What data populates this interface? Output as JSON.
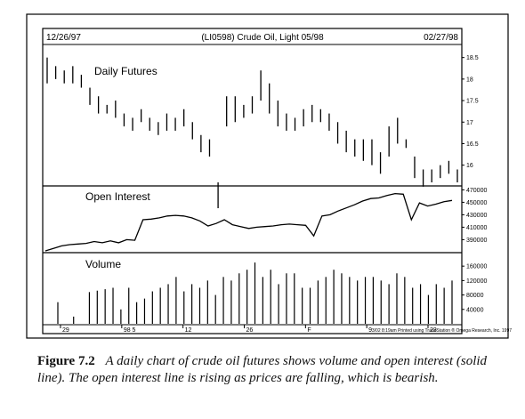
{
  "header": {
    "start_date": "12/26/97",
    "title": "(LI0598) Crude Oil, Light 05/98",
    "end_date": "02/27/98"
  },
  "panels": {
    "price_label": "Daily Futures",
    "oi_label": "Open Interest",
    "volume_label": "Volume"
  },
  "footer_credit": "3/02 8:19am Printed using TradeStation ® Omega Research, Inc. 1997",
  "caption": {
    "label": "Figure 7.2",
    "text": "A daily chart of crude oil futures shows volume and open interest (solid line). The open interest line is rising as prices are falling, which is bearish."
  },
  "chart_data": {
    "type": "bar",
    "x_tick_labels": [
      "29",
      "98 5",
      "12",
      "26",
      "F",
      "9",
      "23"
    ],
    "price": {
      "ylim": [
        15.6,
        18.7
      ],
      "y_ticks": [
        16,
        16.5,
        17,
        17.5,
        18,
        18.5
      ],
      "y_tick_labels": [
        "16",
        "16.5",
        "17",
        "17.5",
        "18",
        "18.5"
      ],
      "high": [
        18.5,
        18.3,
        18.2,
        18.3,
        18.1,
        17.8,
        17.6,
        17.4,
        17.5,
        17.2,
        17.1,
        17.3,
        17.1,
        17.0,
        17.2,
        17.1,
        17.3,
        17.0,
        16.7,
        16.6,
        15.6,
        17.6,
        17.6,
        17.4,
        17.6,
        18.2,
        17.9,
        17.5,
        17.2,
        17.1,
        17.3,
        17.4,
        17.3,
        17.2,
        17.0,
        16.8,
        16.6,
        16.6,
        16.6,
        16.3,
        16.9,
        17.1,
        16.6,
        16.2,
        15.9,
        15.9,
        16.0,
        16.1,
        15.9
      ],
      "low": [
        17.9,
        18.0,
        17.9,
        17.9,
        17.8,
        17.4,
        17.2,
        17.2,
        17.1,
        16.9,
        16.8,
        17.0,
        16.8,
        16.7,
        16.8,
        16.8,
        16.9,
        16.6,
        16.3,
        16.2,
        15.0,
        16.9,
        17.0,
        17.1,
        17.2,
        17.5,
        17.2,
        16.9,
        16.8,
        16.8,
        16.9,
        17.0,
        17.0,
        16.8,
        16.5,
        16.3,
        16.2,
        16.1,
        16.0,
        15.8,
        16.2,
        16.5,
        16.4,
        15.7,
        15.5,
        15.6,
        15.7,
        15.8,
        15.6
      ]
    },
    "open_interest": {
      "ylim": [
        372000,
        472000
      ],
      "y_ticks": [
        390000,
        410000,
        430000,
        450000,
        470000
      ],
      "y_tick_labels": [
        "390000",
        "410000",
        "430000",
        "450000",
        "470000"
      ],
      "values": [
        372000,
        376000,
        380000,
        382000,
        383000,
        384000,
        387000,
        385000,
        388000,
        385000,
        390000,
        389000,
        422000,
        423000,
        425000,
        428000,
        429000,
        428000,
        425000,
        420000,
        412000,
        416000,
        422000,
        414000,
        411000,
        408000,
        410000,
        411000,
        412000,
        414000,
        415000,
        414000,
        413000,
        396000,
        428000,
        430000,
        436000,
        441000,
        446000,
        452000,
        456000,
        457000,
        461000,
        464000,
        463000,
        422000,
        449000,
        444000,
        447000,
        451000,
        453000
      ]
    },
    "volume": {
      "ylim": [
        0,
        190000
      ],
      "y_ticks": [
        40000,
        80000,
        120000,
        160000
      ],
      "y_tick_labels": [
        "40000",
        "80000",
        "120000",
        "160000"
      ],
      "values": [
        60000,
        0,
        20000,
        0,
        88000,
        92000,
        96000,
        100000,
        40000,
        100000,
        60000,
        70000,
        90000,
        100000,
        110000,
        130000,
        90000,
        110000,
        100000,
        120000,
        80000,
        130000,
        120000,
        140000,
        150000,
        170000,
        130000,
        150000,
        110000,
        140000,
        140000,
        100000,
        100000,
        120000,
        130000,
        150000,
        140000,
        130000,
        120000,
        130000,
        130000,
        120000,
        110000,
        140000,
        130000,
        100000,
        110000,
        80000,
        110000,
        100000,
        120000
      ]
    }
  }
}
